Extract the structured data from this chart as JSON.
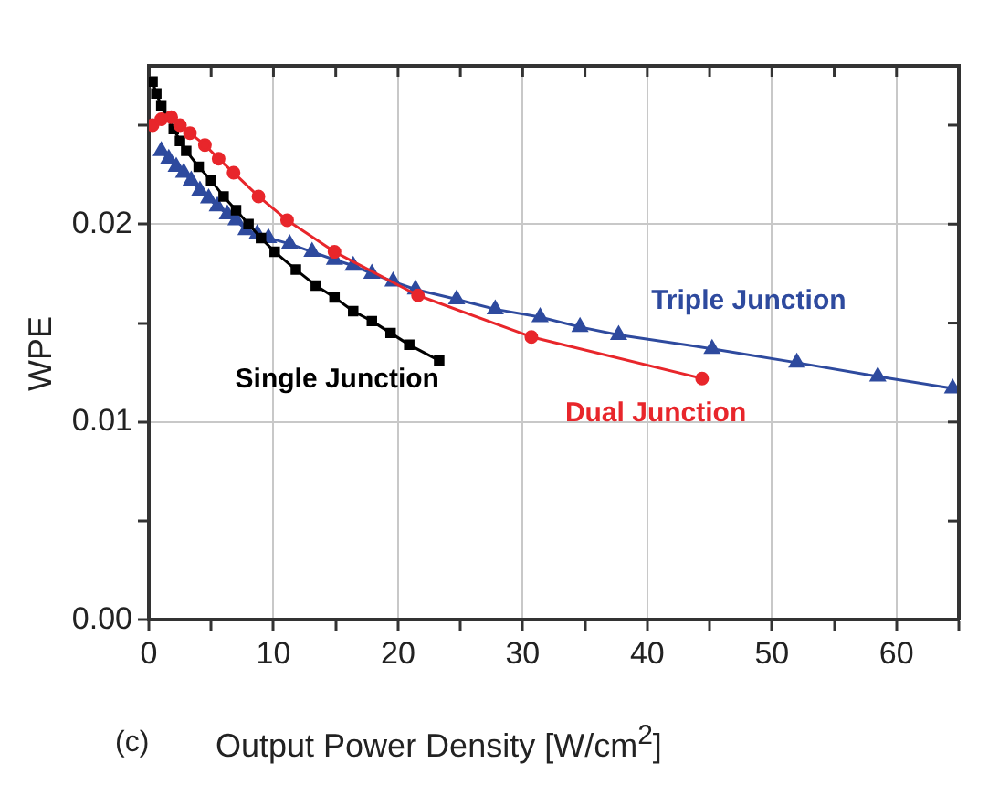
{
  "chart_data": {
    "type": "line",
    "xlabel": "Output Power Density [W/cm$^{2}$]",
    "ylabel": "WPE",
    "annotations": [
      "(c)"
    ],
    "xlim": [
      0,
      65
    ],
    "ylim": [
      0,
      0.028
    ],
    "xticks": [
      0,
      {
        "value": 5,
        "label": null
      },
      10,
      {
        "value": 15,
        "label": null
      },
      20,
      {
        "value": 25,
        "label": null
      },
      30,
      {
        "value": 35,
        "label": null
      },
      40,
      {
        "value": 45,
        "label": null
      },
      50,
      {
        "value": 55,
        "label": null
      },
      60,
      {
        "value": 65,
        "label": null
      }
    ],
    "yticks": [
      {
        "value": 0,
        "label": "0.00"
      },
      {
        "value": 0.005,
        "label": null
      },
      {
        "value": 0.01,
        "label": "0.01"
      },
      {
        "value": 0.015,
        "label": null
      },
      {
        "value": 0.02,
        "label": "0.02"
      },
      {
        "value": 0.025,
        "label": null
      }
    ],
    "grid": true,
    "legend": false,
    "line_style": "solid",
    "series": [
      {
        "name": "Single Junction",
        "color": "#000000",
        "marker": "square",
        "x": [
          0.3,
          0.6,
          1,
          1.5,
          2,
          2.5,
          3,
          4,
          5,
          6,
          7,
          8,
          9,
          10.1,
          11.8,
          13.4,
          14.9,
          16.4,
          17.9,
          19.4,
          20.9,
          23.3
        ],
        "values": [
          0.0272,
          0.0266,
          0.026,
          0.0254,
          0.0248,
          0.0242,
          0.0237,
          0.0229,
          0.0222,
          0.0214,
          0.0207,
          0.02,
          0.0193,
          0.0186,
          0.0177,
          0.0169,
          0.0163,
          0.0156,
          0.0151,
          0.0145,
          0.0139,
          0.0131
        ]
      },
      {
        "name": "Dual Junction",
        "color": "#e8262b",
        "marker": "circle",
        "x": [
          0.3,
          1,
          1.8,
          2.5,
          3.3,
          4.5,
          5.6,
          6.8,
          8.8,
          11.1,
          14.9,
          21.6,
          30.7,
          44.4
        ],
        "values": [
          0.025,
          0.0253,
          0.0254,
          0.025,
          0.0246,
          0.024,
          0.0233,
          0.0226,
          0.0214,
          0.0202,
          0.0186,
          0.0164,
          0.0143,
          0.0122
        ]
      },
      {
        "name": "Triple Junction",
        "color": "#2e4a9e",
        "marker": "triangle",
        "x": [
          1,
          1.6,
          2.2,
          2.8,
          3.4,
          4.1,
          4.8,
          5.5,
          6.3,
          7,
          7.8,
          8.7,
          9.6,
          11.3,
          13.1,
          14.9,
          16.4,
          17.9,
          19.6,
          21.4,
          24.7,
          27.8,
          31.4,
          34.6,
          37.7,
          45.2,
          52,
          58.5,
          64.5
        ],
        "values": [
          0.0237,
          0.0233,
          0.0229,
          0.0226,
          0.0222,
          0.0217,
          0.0213,
          0.0209,
          0.0205,
          0.0202,
          0.0197,
          0.0195,
          0.0193,
          0.019,
          0.0186,
          0.0182,
          0.0179,
          0.0175,
          0.0171,
          0.0167,
          0.0162,
          0.0157,
          0.0153,
          0.0148,
          0.0144,
          0.0137,
          0.013,
          0.0123,
          0.0117
        ]
      }
    ]
  }
}
